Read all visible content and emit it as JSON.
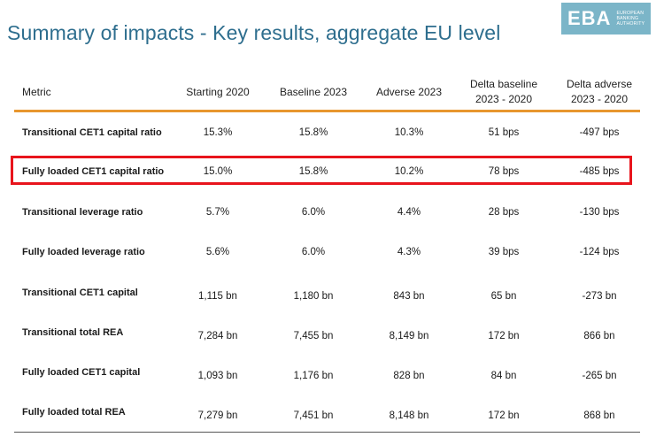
{
  "header": {
    "title": "Summary of impacts - Key results, aggregate EU level",
    "logo": {
      "mark": "EBA",
      "line1": "EUROPEAN",
      "line2": "BANKING",
      "line3": "AUTHORITY"
    }
  },
  "table": {
    "columns": {
      "metric": "Metric",
      "starting": "Starting 2020",
      "baseline": "Baseline 2023",
      "adverse": "Adverse 2023",
      "delta_baseline_1": "Delta baseline",
      "delta_baseline_2": "2023 - 2020",
      "delta_adverse_1": "Delta adverse",
      "delta_adverse_2": "2023 - 2020"
    },
    "rows": [
      [
        "Transitional CET1 capital ratio",
        "15.3%",
        "15.8%",
        "10.3%",
        "51 bps",
        "-497 bps"
      ],
      [
        "Fully loaded CET1 capital ratio",
        "15.0%",
        "15.8%",
        "10.2%",
        "78 bps",
        "-485 bps"
      ],
      [
        "Transitional leverage ratio",
        "5.7%",
        "6.0%",
        "4.4%",
        "28 bps",
        "-130 bps"
      ],
      [
        "Fully loaded leverage ratio",
        "5.6%",
        "6.0%",
        "4.3%",
        "39 bps",
        "-124 bps"
      ],
      [
        "Transitional CET1 capital",
        "1,115 bn",
        "1,180 bn",
        "843 bn",
        "65 bn",
        "-273 bn"
      ],
      [
        "Transitional total REA",
        "7,284 bn",
        "7,455 bn",
        "8,149 bn",
        "172 bn",
        "866 bn"
      ],
      [
        "Fully loaded CET1 capital",
        "1,093 bn",
        "1,176 bn",
        "828 bn",
        "84 bn",
        "-265 bn"
      ],
      [
        "Fully loaded total REA",
        "7,279 bn",
        "7,451 bn",
        "8,148 bn",
        "172 bn",
        "868 bn"
      ]
    ],
    "highlighted_row": "Fully loaded CET1 capital ratio"
  },
  "colors": {
    "title": "#2e6e8e",
    "logo_bg": "#7bb5c8",
    "rule": "#e8962e",
    "highlight": "#e8141c"
  }
}
